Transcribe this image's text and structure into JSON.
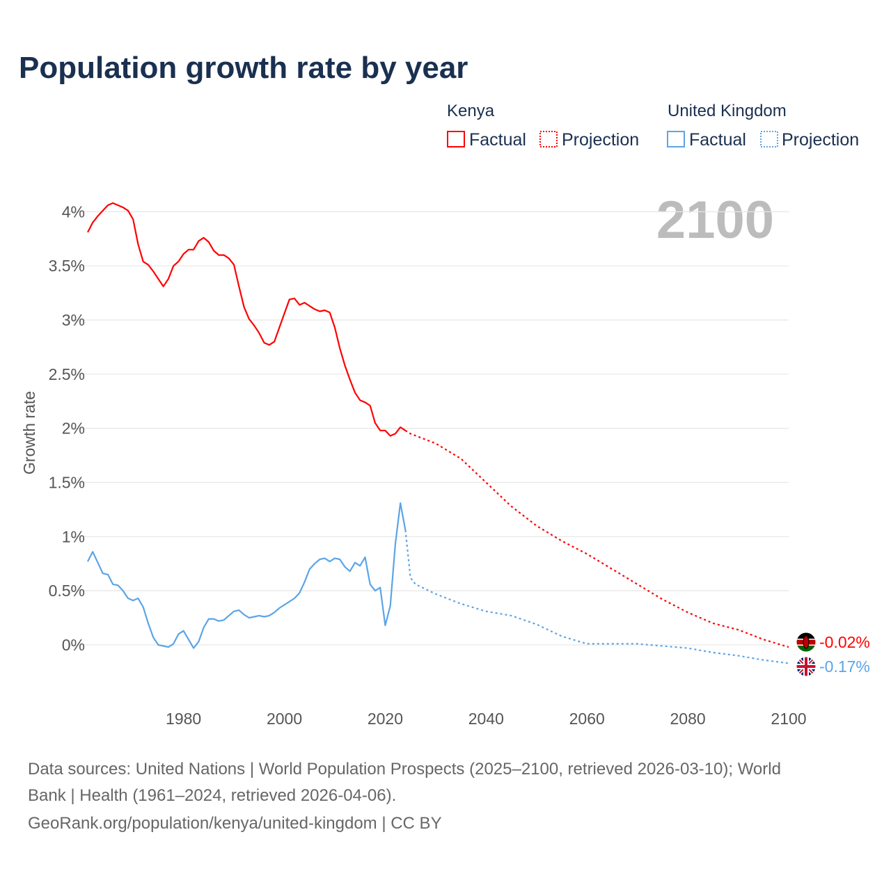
{
  "chart_data": {
    "type": "line",
    "title": "Population growth rate by year",
    "ylabel": "Growth rate",
    "xlabel": "",
    "year_label": "2100",
    "xlim": [
      1961,
      2100
    ],
    "ylim": [
      -0.45,
      4.15
    ],
    "x_ticks": [
      1980,
      2000,
      2020,
      2040,
      2060,
      2080,
      2100
    ],
    "x_tick_labels": [
      "1980",
      "2000",
      "2020",
      "2040",
      "2060",
      "2080",
      "2100"
    ],
    "y_ticks": [
      0,
      0.5,
      1,
      1.5,
      2,
      2.5,
      3,
      3.5,
      4
    ],
    "y_tick_labels": [
      "0%",
      "0.5%",
      "1%",
      "1.5%",
      "2%",
      "2.5%",
      "3%",
      "3.5%",
      "4%"
    ],
    "grid": true,
    "legend": {
      "placement": "top-right",
      "groups": [
        {
          "name": "Kenya",
          "factual": "Factual",
          "projection": "Projection"
        },
        {
          "name": "United Kingdom",
          "factual": "Factual",
          "projection": "Projection"
        }
      ]
    },
    "series": [
      {
        "name": "Kenya",
        "color": "#ff0000",
        "end_label": "-0.02%",
        "flag": "kenya-flag",
        "factual": {
          "x": [
            1961,
            1962,
            1963,
            1964,
            1965,
            1966,
            1967,
            1968,
            1969,
            1970,
            1971,
            1972,
            1973,
            1974,
            1975,
            1976,
            1977,
            1978,
            1979,
            1980,
            1981,
            1982,
            1983,
            1984,
            1985,
            1986,
            1987,
            1988,
            1989,
            1990,
            1991,
            1992,
            1993,
            1994,
            1995,
            1996,
            1997,
            1998,
            1999,
            2000,
            2001,
            2002,
            2003,
            2004,
            2005,
            2006,
            2007,
            2008,
            2009,
            2010,
            2011,
            2012,
            2013,
            2014,
            2015,
            2016,
            2017,
            2018,
            2019,
            2020,
            2021,
            2022,
            2023,
            2024
          ],
          "y": [
            3.81,
            3.9,
            3.96,
            4.01,
            4.06,
            4.08,
            4.06,
            4.04,
            4.01,
            3.93,
            3.7,
            3.54,
            3.51,
            3.45,
            3.38,
            3.31,
            3.38,
            3.5,
            3.54,
            3.61,
            3.65,
            3.65,
            3.73,
            3.76,
            3.72,
            3.64,
            3.6,
            3.6,
            3.57,
            3.51,
            3.31,
            3.12,
            3.01,
            2.95,
            2.88,
            2.79,
            2.77,
            2.8,
            2.93,
            3.06,
            3.19,
            3.2,
            3.14,
            3.16,
            3.13,
            3.1,
            3.08,
            3.09,
            3.07,
            2.93,
            2.74,
            2.58,
            2.45,
            2.33,
            2.26,
            2.24,
            2.21,
            2.05,
            1.98,
            1.98,
            1.93,
            1.95,
            2.01,
            1.98
          ]
        },
        "projection": {
          "x": [
            2024,
            2025,
            2030,
            2035,
            2040,
            2045,
            2050,
            2055,
            2060,
            2065,
            2070,
            2075,
            2080,
            2085,
            2090,
            2095,
            2100
          ],
          "y": [
            1.98,
            1.95,
            1.86,
            1.72,
            1.5,
            1.28,
            1.1,
            0.96,
            0.84,
            0.7,
            0.56,
            0.42,
            0.3,
            0.2,
            0.14,
            0.05,
            -0.02
          ]
        }
      },
      {
        "name": "United Kingdom",
        "color": "#5ba4e8",
        "end_label": "-0.17%",
        "flag": "uk-flag",
        "factual": {
          "x": [
            1961,
            1962,
            1963,
            1964,
            1965,
            1966,
            1967,
            1968,
            1969,
            1970,
            1971,
            1972,
            1973,
            1974,
            1975,
            1976,
            1977,
            1978,
            1979,
            1980,
            1981,
            1982,
            1983,
            1984,
            1985,
            1986,
            1987,
            1988,
            1989,
            1990,
            1991,
            1992,
            1993,
            1994,
            1995,
            1996,
            1997,
            1998,
            1999,
            2000,
            2001,
            2002,
            2003,
            2004,
            2005,
            2006,
            2007,
            2008,
            2009,
            2010,
            2011,
            2012,
            2013,
            2014,
            2015,
            2016,
            2017,
            2018,
            2019,
            2020,
            2021,
            2022,
            2023,
            2024
          ],
          "y": [
            0.77,
            0.86,
            0.76,
            0.66,
            0.65,
            0.56,
            0.55,
            0.5,
            0.43,
            0.41,
            0.43,
            0.35,
            0.2,
            0.07,
            0.0,
            -0.01,
            -0.02,
            0.01,
            0.1,
            0.13,
            0.05,
            -0.03,
            0.03,
            0.16,
            0.24,
            0.24,
            0.22,
            0.23,
            0.27,
            0.31,
            0.32,
            0.28,
            0.25,
            0.26,
            0.27,
            0.26,
            0.27,
            0.3,
            0.34,
            0.37,
            0.4,
            0.43,
            0.48,
            0.58,
            0.7,
            0.75,
            0.79,
            0.8,
            0.77,
            0.8,
            0.79,
            0.72,
            0.68,
            0.76,
            0.73,
            0.81,
            0.56,
            0.5,
            0.53,
            0.18,
            0.36,
            0.93,
            1.31,
            1.06
          ]
        },
        "projection": {
          "x": [
            2024,
            2025,
            2026,
            2030,
            2035,
            2040,
            2045,
            2050,
            2055,
            2060,
            2065,
            2070,
            2075,
            2080,
            2085,
            2090,
            2095,
            2100
          ],
          "y": [
            1.06,
            0.62,
            0.56,
            0.47,
            0.38,
            0.31,
            0.27,
            0.19,
            0.08,
            0.01,
            0.01,
            0.01,
            -0.01,
            -0.03,
            -0.07,
            -0.1,
            -0.14,
            -0.17
          ]
        }
      }
    ]
  },
  "footer": {
    "line1": "Data sources: United Nations | World Population Prospects (2025–2100, retrieved 2026-03-10); World",
    "line2": "Bank | Health (1961–2024, retrieved 2026-04-06).",
    "line3": "GeoRank.org/population/kenya/united-kingdom | CC BY"
  }
}
